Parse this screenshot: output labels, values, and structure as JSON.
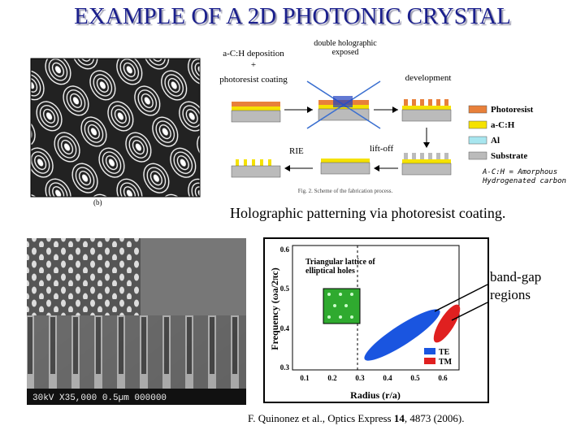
{
  "header": {
    "title": "EXAMPLE OF A 2D PHOTONIC CRYSTAL"
  },
  "contour_figure": {
    "label": "(b)"
  },
  "fabrication_scheme": {
    "steps": {
      "deposition": "a-C:H deposition",
      "plus": "+",
      "coating": "photoresist coating",
      "exposure": "double holographic exposed",
      "development": "development",
      "rie": "RIE",
      "liftoff": "lift-off"
    },
    "legend": [
      "Photoresist",
      "a-C:H",
      "Al",
      "Substrate"
    ],
    "caption": "Fig. 2. Scheme of the fabrication process.",
    "note": "A-C:H = Amorphous Hydrogenated carbon"
  },
  "caption": "Holographic patterning via photoresist coating.",
  "sem_image": {
    "info": "30kV X35,000 0.5µm 000000"
  },
  "band_graph": {
    "inset_label": "Triangular lattice of elliptical holes",
    "y_label": "Frequency (ωa/2πc)",
    "x_label": "Radius (r/a)",
    "x_ticks": [
      "0.1",
      "0.2",
      "0.3",
      "0.4",
      "0.5",
      "0.6"
    ],
    "y_ticks": [
      "0.3",
      "0.4",
      "0.5",
      "0.6"
    ],
    "legend": [
      "TE",
      "TM"
    ]
  },
  "annotation": "band-gap regions",
  "citation": {
    "before": "F. Quinonez et al., Optics Express ",
    "volume": "14",
    "after": ", 4873 (2006)."
  }
}
